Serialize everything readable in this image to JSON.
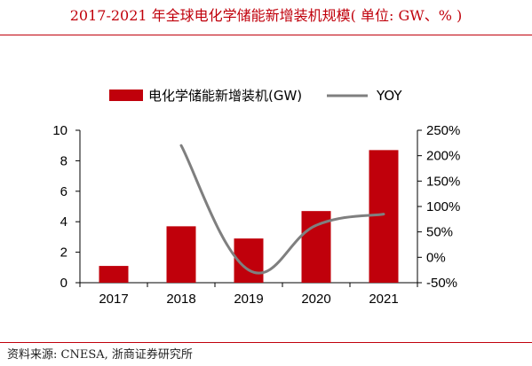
{
  "title": "2017-2021 年全球电化学储能新增装机规模( 单位: GW、% )",
  "source": "资料来源:  CNESA,  浙商证券研究所",
  "chart_data": {
    "type": "bar",
    "categories": [
      "2017",
      "2018",
      "2019",
      "2020",
      "2021"
    ],
    "series": [
      {
        "name": "电化学储能新增装机(GW)",
        "type": "bar",
        "axis": "left",
        "color": "#c0000b",
        "values": [
          1.1,
          3.7,
          2.9,
          4.7,
          8.7
        ]
      },
      {
        "name": "YOY",
        "type": "line",
        "axis": "right",
        "color": "#7f7f7f",
        "values": [
          null,
          2.2,
          -0.25,
          0.63,
          0.85
        ]
      }
    ],
    "ylim_left": [
      0,
      10
    ],
    "yticks_left": [
      "0",
      "2",
      "4",
      "6",
      "8",
      "10"
    ],
    "ylim_right": [
      -0.5,
      2.5
    ],
    "yticks_right": [
      "-50%",
      "0%",
      "50%",
      "100%",
      "150%",
      "200%",
      "250%"
    ],
    "legend_position": "top",
    "grid": false
  }
}
